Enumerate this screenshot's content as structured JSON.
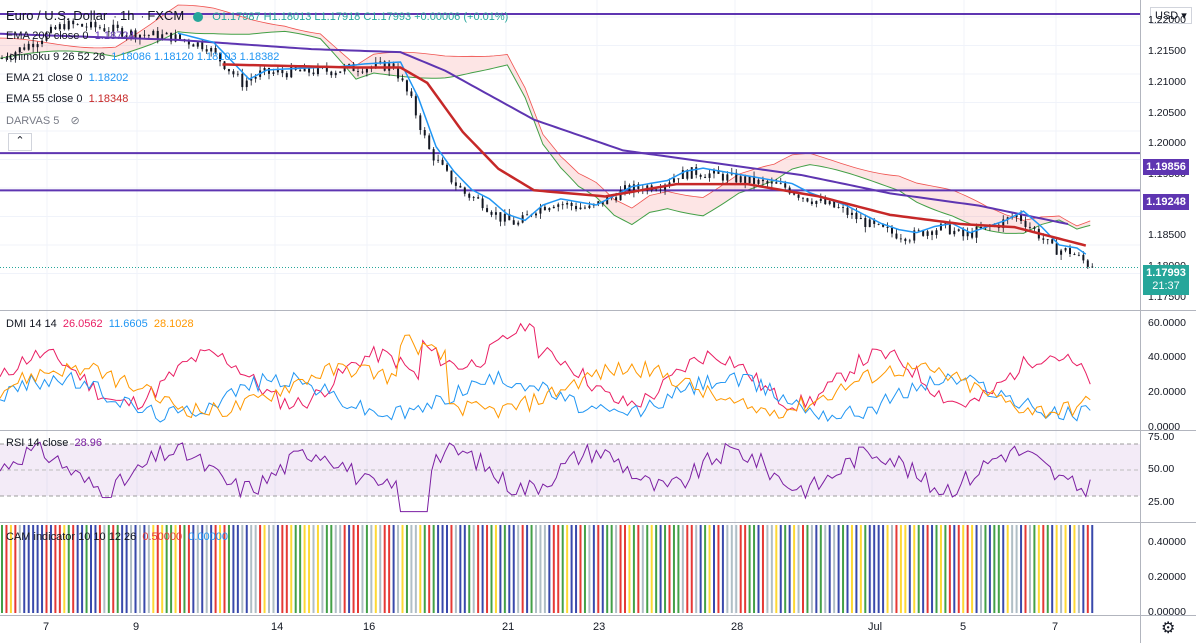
{
  "header": {
    "symbol": "Euro / U.S. Dollar",
    "interval": "1h",
    "exchange": "FXCM",
    "ohlc": "O1.17987 H1.18013 L1.17918 C1.17993 +0.00006 (+0.01%)"
  },
  "currency_label": "USD",
  "legend": [
    {
      "name": "EMA 200 close 0",
      "value": "1.18724",
      "color": "#5e35b1"
    },
    {
      "name": "Ichimoku 9 26 52 26",
      "value": "1.18086  1.18120  1.18103  1.18382",
      "color": "#131722"
    },
    {
      "name": "EMA 21 close 0",
      "value": "1.18202",
      "color": "#2196f3"
    },
    {
      "name": "EMA 55 close 0",
      "value": "1.18348",
      "color": "#c62828"
    },
    {
      "name": "DARVAS 5",
      "value": "",
      "color": "#787b86"
    }
  ],
  "price_tags": {
    "res1": "1.19856",
    "res2": "1.19248",
    "last": "1.17993",
    "countdown": "21:37"
  },
  "price_ticks": [
    "1.22000",
    "1.21500",
    "1.21000",
    "1.20500",
    "1.20000",
    "1.19500",
    "1.19000",
    "1.18500",
    "1.18000",
    "1.17500"
  ],
  "dmi_legend": {
    "name": "DMI 14 14",
    "v1": "26.0562",
    "v2": "11.6605",
    "v3": "28.1028"
  },
  "dmi_ticks": [
    "60.0000",
    "40.0000",
    "20.0000",
    "0.0000"
  ],
  "rsi_legend": {
    "name": "RSI 14 close",
    "value": "28.96"
  },
  "rsi_ticks": [
    "75.00",
    "50.00",
    "25.00"
  ],
  "cam_legend": {
    "name": "CAM indicator 10 10 12 26",
    "v1": "0.50000",
    "v2": "0.00000"
  },
  "cam_ticks": [
    "0.40000",
    "0.20000",
    "0.00000"
  ],
  "x_ticks": [
    "7",
    "9",
    "14",
    "16",
    "21",
    "23",
    "28",
    "Jul",
    "5",
    "7"
  ],
  "colors": {
    "bull": "#26a69a",
    "bear": "#ef5350",
    "ema200": "#5e35b1",
    "ema21": "#2196f3",
    "ema55": "#c62828",
    "hline": "#5e35b1",
    "plus_di": "#2196f3",
    "minus_di": "#e91e63",
    "adx": "#ff9800",
    "rsi": "#7b1fa2"
  },
  "chart_data": {
    "type": "candlestick",
    "ylim": [
      1.173,
      1.2235
    ],
    "x_ticks": [
      "7",
      "9",
      "14",
      "16",
      "21",
      "23",
      "28",
      "Jul",
      "5",
      "7"
    ],
    "close_path": [
      [
        0,
        1.214
      ],
      [
        8,
        1.217
      ],
      [
        14,
        1.2195
      ],
      [
        22,
        1.219
      ],
      [
        30,
        1.218
      ],
      [
        38,
        1.2175
      ],
      [
        46,
        1.216
      ],
      [
        54,
        1.21
      ],
      [
        58,
        1.2115
      ],
      [
        66,
        1.2118
      ],
      [
        74,
        1.212
      ],
      [
        80,
        1.2125
      ],
      [
        88,
        1.2128
      ],
      [
        92,
        1.207
      ],
      [
        96,
        1.199
      ],
      [
        100,
        1.195
      ],
      [
        104,
        1.192
      ],
      [
        108,
        1.1905
      ],
      [
        112,
        1.188
      ],
      [
        116,
        1.187
      ],
      [
        120,
        1.1895
      ],
      [
        124,
        1.1905
      ],
      [
        128,
        1.19
      ],
      [
        132,
        1.1895
      ],
      [
        136,
        1.191
      ],
      [
        140,
        1.1925
      ],
      [
        144,
        1.193
      ],
      [
        148,
        1.1935
      ],
      [
        152,
        1.195
      ],
      [
        156,
        1.1955
      ],
      [
        160,
        1.195
      ],
      [
        164,
        1.1945
      ],
      [
        168,
        1.194
      ],
      [
        172,
        1.1935
      ],
      [
        176,
        1.193
      ],
      [
        180,
        1.1915
      ],
      [
        184,
        1.1905
      ],
      [
        188,
        1.1895
      ],
      [
        192,
        1.188
      ],
      [
        196,
        1.1865
      ],
      [
        200,
        1.1855
      ],
      [
        204,
        1.185
      ],
      [
        208,
        1.186
      ],
      [
        212,
        1.1865
      ],
      [
        216,
        1.185
      ],
      [
        220,
        1.186
      ],
      [
        224,
        1.187
      ],
      [
        228,
        1.1885
      ],
      [
        232,
        1.186
      ],
      [
        236,
        1.183
      ],
      [
        240,
        1.1825
      ],
      [
        244,
        1.1805
      ]
    ],
    "ema200_path": [
      [
        0,
        1.218
      ],
      [
        40,
        1.217
      ],
      [
        70,
        1.2155
      ],
      [
        90,
        1.215
      ],
      [
        100,
        1.212
      ],
      [
        120,
        1.204
      ],
      [
        140,
        1.199
      ],
      [
        160,
        1.197
      ],
      [
        180,
        1.195
      ],
      [
        200,
        1.192
      ],
      [
        220,
        1.19
      ],
      [
        240,
        1.187
      ]
    ],
    "ema55_path": [
      [
        50,
        1.213
      ],
      [
        80,
        1.2125
      ],
      [
        90,
        1.2125
      ],
      [
        96,
        1.21
      ],
      [
        104,
        1.202
      ],
      [
        112,
        1.196
      ],
      [
        120,
        1.1925
      ],
      [
        136,
        1.1915
      ],
      [
        152,
        1.1935
      ],
      [
        168,
        1.1935
      ],
      [
        184,
        1.1915
      ],
      [
        200,
        1.1885
      ],
      [
        216,
        1.187
      ],
      [
        228,
        1.1865
      ],
      [
        244,
        1.1835
      ]
    ],
    "resistance_levels": [
      1.19856,
      1.19248
    ],
    "top_line": 1.2235,
    "last_price": 1.17993,
    "dmi_ylim": [
      0,
      65
    ],
    "rsi_ylim": [
      10,
      80
    ],
    "rsi_band": [
      30,
      70
    ],
    "cam_ylim": [
      0,
      0.5
    ]
  }
}
